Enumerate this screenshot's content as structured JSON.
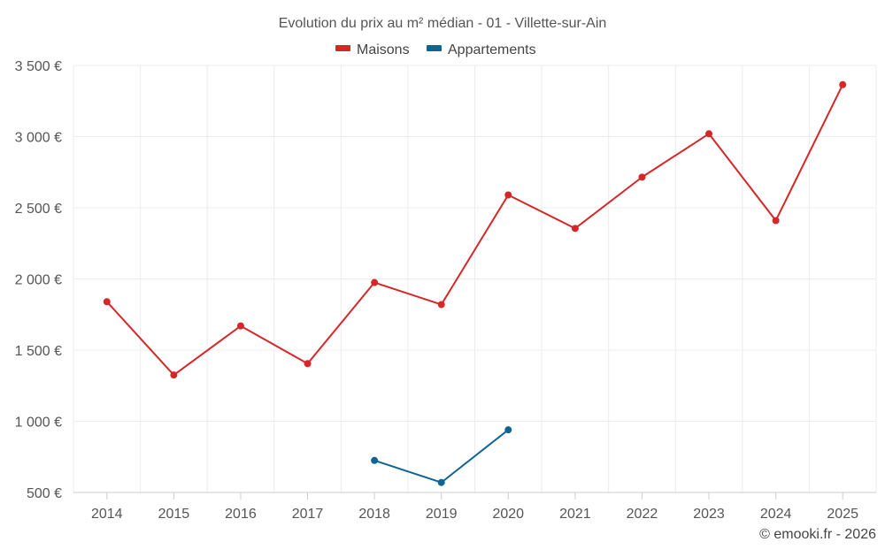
{
  "chart_data": {
    "type": "line",
    "title": "Evolution du prix au m² médian - 01 - Villette-sur-Ain",
    "categories": [
      "2014",
      "2015",
      "2016",
      "2017",
      "2018",
      "2019",
      "2020",
      "2021",
      "2022",
      "2023",
      "2024",
      "2025"
    ],
    "series": [
      {
        "name": "Maisons",
        "color": "#d62728",
        "values": [
          1840,
          1325,
          1670,
          1405,
          1975,
          1820,
          2590,
          2355,
          2715,
          3020,
          2410,
          3365
        ]
      },
      {
        "name": "Appartements",
        "color": "#0f6496",
        "values": [
          null,
          null,
          null,
          null,
          725,
          570,
          940,
          null,
          null,
          null,
          null,
          null
        ]
      }
    ],
    "ylim": [
      500,
      3500
    ],
    "yticks": [
      500,
      1000,
      1500,
      2000,
      2500,
      3000,
      3500
    ],
    "ytick_labels": [
      "500 €",
      "1 000 €",
      "1 500 €",
      "2 000 €",
      "2 500 €",
      "3 000 €",
      "3 500 €"
    ],
    "legend_position": "top-center",
    "grid": true
  },
  "credit": "© emooki.fr - 2026"
}
